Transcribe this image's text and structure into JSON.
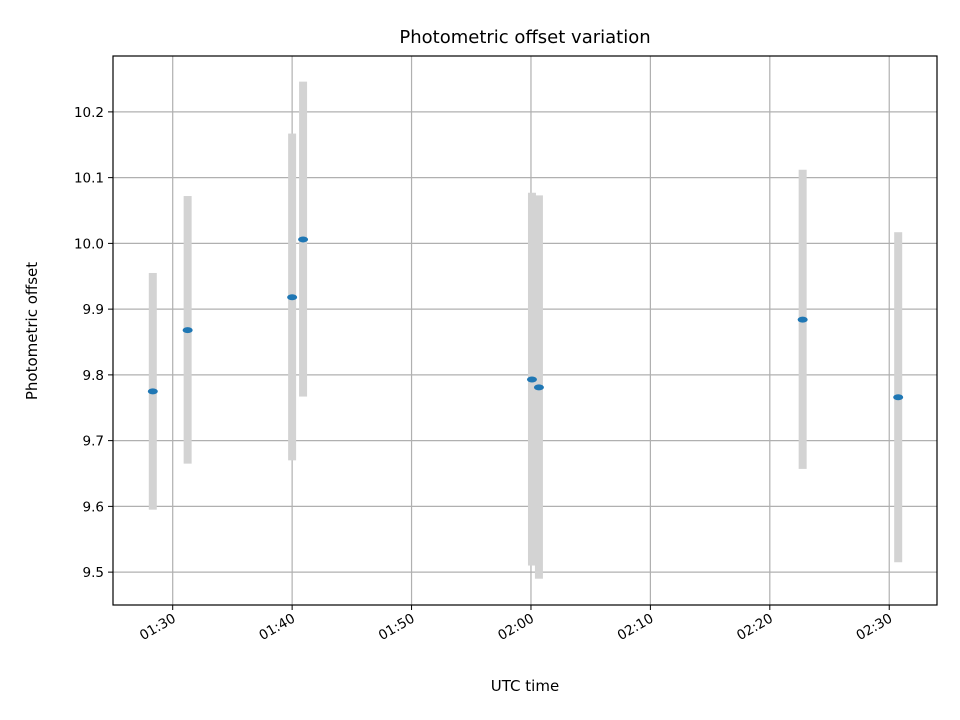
{
  "chart_data": {
    "type": "scatter",
    "title": "Photometric offset variation",
    "xlabel": "UTC time",
    "ylabel": "Photometric offset",
    "x_ticks": [
      "01:30",
      "01:40",
      "01:50",
      "02:00",
      "02:10",
      "02:20",
      "02:30"
    ],
    "y_ticks": [
      "9.5",
      "9.6",
      "9.7",
      "9.8",
      "9.9",
      "10.0",
      "10.1",
      "10.2"
    ],
    "xlim": [
      "01:25",
      "02:34"
    ],
    "ylim": [
      9.45,
      10.285
    ],
    "grid": true,
    "point_color": "#1f77b4",
    "errorbar_color": "#d3d3d3",
    "points": [
      {
        "x": "01:28:20",
        "y": 9.775,
        "err_low": 9.595,
        "err_high": 9.955
      },
      {
        "x": "01:31:15",
        "y": 9.868,
        "err_low": 9.665,
        "err_high": 10.072
      },
      {
        "x": "01:40:00",
        "y": 9.918,
        "err_low": 9.67,
        "err_high": 10.167
      },
      {
        "x": "01:40:55",
        "y": 10.006,
        "err_low": 9.767,
        "err_high": 10.246
      },
      {
        "x": "02:00:05",
        "y": 9.793,
        "err_low": 9.51,
        "err_high": 10.077
      },
      {
        "x": "02:00:40",
        "y": 9.781,
        "err_low": 9.49,
        "err_high": 10.073
      },
      {
        "x": "02:22:45",
        "y": 9.884,
        "err_low": 9.657,
        "err_high": 10.112
      },
      {
        "x": "02:30:45",
        "y": 9.766,
        "err_low": 9.515,
        "err_high": 10.017
      }
    ]
  }
}
